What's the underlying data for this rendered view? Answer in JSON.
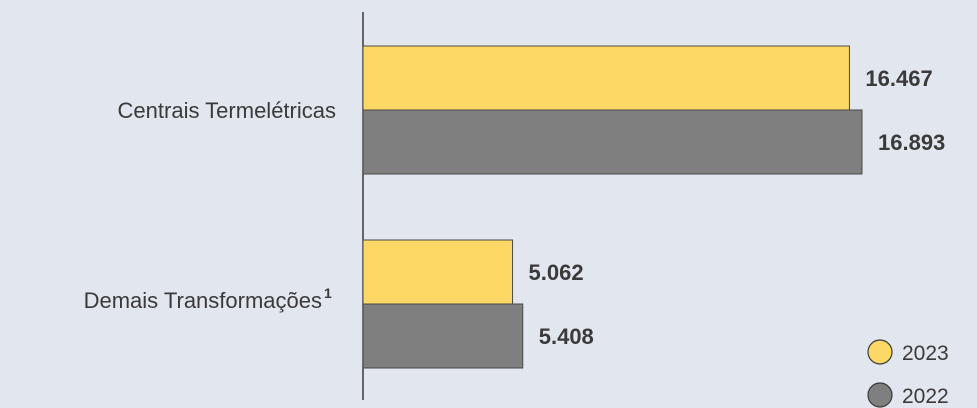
{
  "chart_data": {
    "type": "bar",
    "orientation": "horizontal",
    "categories": [
      "Centrais Termelétricas",
      "Demais Transformações"
    ],
    "category_superscripts": [
      "",
      "1"
    ],
    "series": [
      {
        "name": "2023",
        "values": [
          16467,
          5062
        ],
        "labels": [
          "16.467",
          "5.062"
        ],
        "color": "#fdd865"
      },
      {
        "name": "2022",
        "values": [
          16893,
          5408
        ],
        "labels": [
          "16.893",
          "5.408"
        ],
        "color": "#7f7f7f"
      }
    ],
    "title": "",
    "xlabel": "",
    "ylabel": "",
    "xlim": [
      0,
      16893
    ],
    "grid": false,
    "legend_position": "bottom-right"
  }
}
